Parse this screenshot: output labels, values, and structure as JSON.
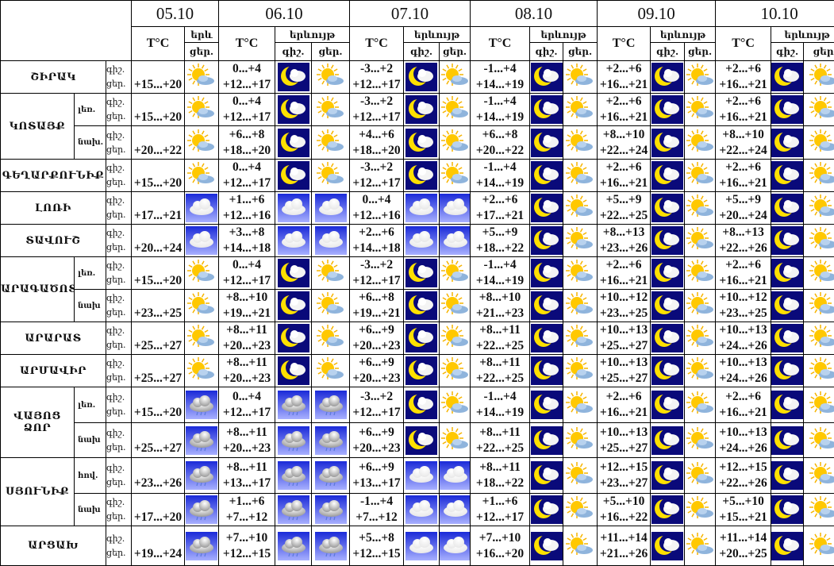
{
  "header": {
    "dates": [
      "05.10",
      "06.10",
      "07.10",
      "08.10",
      "09.10",
      "10.10"
    ],
    "temp_label": "T°C",
    "phenomenon_label": "երևույթ",
    "phenomenon_label_truncated": "երև",
    "night_label": "գիշ.",
    "day_label": "ցեր.",
    "night_label_short": "գիշ.",
    "day_label_last": "ցեր"
  },
  "row_labels": {
    "night": "գիշ.",
    "day": "ցեր."
  },
  "icon_types": {
    "sun-cloud": "partly-cloudy-day-icon",
    "moon-cloud": "partly-cloudy-night-icon",
    "cloud": "cloudy-icon",
    "rain": "rain-icon"
  },
  "regions": [
    {
      "name": "ՇԻՐԱԿ",
      "subs": [
        {
          "name": "",
          "d05": [
            "+15...+20",
            "sun-cloud"
          ],
          "days": [
            [
              "0...+4",
              "+12...+17",
              "moon-cloud",
              "sun-cloud"
            ],
            [
              "-3...+2",
              "+12...+17",
              "moon-cloud",
              "sun-cloud"
            ],
            [
              "-1...+4",
              "+14...+19",
              "moon-cloud",
              "sun-cloud"
            ],
            [
              "+2...+6",
              "+16...+21",
              "moon-cloud",
              "sun-cloud"
            ],
            [
              "+2...+6",
              "+16...+21",
              "moon-cloud",
              "sun-cloud"
            ]
          ]
        }
      ]
    },
    {
      "name": "ԿՈՏԱՅՔ",
      "subs": [
        {
          "name": "լեռ.",
          "d05": [
            "+15...+20",
            "sun-cloud"
          ],
          "days": [
            [
              "0...+4",
              "+12...+17",
              "moon-cloud",
              "sun-cloud"
            ],
            [
              "-3...+2",
              "+12...+17",
              "moon-cloud",
              "sun-cloud"
            ],
            [
              "-1...+4",
              "+14...+19",
              "moon-cloud",
              "sun-cloud"
            ],
            [
              "+2...+6",
              "+16...+21",
              "moon-cloud",
              "sun-cloud"
            ],
            [
              "+2...+6",
              "+16...+21",
              "moon-cloud",
              "sun-cloud"
            ]
          ]
        },
        {
          "name": "նախ.",
          "d05": [
            "+20...+22",
            "sun-cloud"
          ],
          "days": [
            [
              "+6...+8",
              "+18...+20",
              "moon-cloud",
              "sun-cloud"
            ],
            [
              "+4...+6",
              "+18...+20",
              "moon-cloud",
              "sun-cloud"
            ],
            [
              "+6...+8",
              "+20...+22",
              "moon-cloud",
              "sun-cloud"
            ],
            [
              "+8...+10",
              "+22...+24",
              "moon-cloud",
              "sun-cloud"
            ],
            [
              "+8...+10",
              "+22...+24",
              "moon-cloud",
              "sun-cloud"
            ]
          ]
        }
      ]
    },
    {
      "name": "ԳԵՂԱՐՔՈՒՆԻՔ",
      "subs": [
        {
          "name": "",
          "d05": [
            "+15...+20",
            "sun-cloud"
          ],
          "days": [
            [
              "0...+4",
              "+12...+17",
              "moon-cloud",
              "sun-cloud"
            ],
            [
              "-3...+2",
              "+12...+17",
              "moon-cloud",
              "sun-cloud"
            ],
            [
              "-1...+4",
              "+14...+19",
              "moon-cloud",
              "sun-cloud"
            ],
            [
              "+2...+6",
              "+16...+21",
              "moon-cloud",
              "sun-cloud"
            ],
            [
              "+2...+6",
              "+16...+21",
              "moon-cloud",
              "sun-cloud"
            ]
          ]
        }
      ]
    },
    {
      "name": "ԼՈՌԻ",
      "subs": [
        {
          "name": "",
          "d05": [
            "+17...+21",
            "cloud"
          ],
          "days": [
            [
              "+1...+6",
              "+12...+16",
              "cloud",
              "cloud"
            ],
            [
              "0...+4",
              "+12...+16",
              "cloud",
              "cloud"
            ],
            [
              "+2...+6",
              "+17...+21",
              "moon-cloud",
              "sun-cloud"
            ],
            [
              "+5...+9",
              "+22...+25",
              "moon-cloud",
              "sun-cloud"
            ],
            [
              "+5...+9",
              "+20...+24",
              "moon-cloud",
              "sun-cloud"
            ]
          ]
        }
      ]
    },
    {
      "name": "ՏԱՎՈՒՇ",
      "subs": [
        {
          "name": "",
          "d05": [
            "+20...+24",
            "cloud"
          ],
          "days": [
            [
              "+3...+8",
              "+14...+18",
              "cloud",
              "cloud"
            ],
            [
              "+2...+6",
              "+14...+18",
              "cloud",
              "cloud"
            ],
            [
              "+5...+9",
              "+18...+22",
              "moon-cloud",
              "sun-cloud"
            ],
            [
              "+8...+13",
              "+23...+26",
              "moon-cloud",
              "sun-cloud"
            ],
            [
              "+8...+13",
              "+22...+26",
              "moon-cloud",
              "sun-cloud"
            ]
          ]
        }
      ]
    },
    {
      "name": "ԱՐԱԳԱԾՈՏՆ",
      "subs": [
        {
          "name": "լեռ.",
          "d05": [
            "+15...+20",
            "sun-cloud"
          ],
          "days": [
            [
              "0...+4",
              "+12...+17",
              "moon-cloud",
              "sun-cloud"
            ],
            [
              "-3...+2",
              "+12...+17",
              "moon-cloud",
              "sun-cloud"
            ],
            [
              "-1...+4",
              "+14...+19",
              "moon-cloud",
              "sun-cloud"
            ],
            [
              "+2...+6",
              "+16...+21",
              "moon-cloud",
              "sun-cloud"
            ],
            [
              "+2...+6",
              "+16...+21",
              "moon-cloud",
              "sun-cloud"
            ]
          ]
        },
        {
          "name": "նախ",
          "d05": [
            "+23...+25",
            "sun-cloud"
          ],
          "days": [
            [
              "+8...+10",
              "+19...+21",
              "moon-cloud",
              "sun-cloud"
            ],
            [
              "+6...+8",
              "+19...+21",
              "moon-cloud",
              "sun-cloud"
            ],
            [
              "+8...+10",
              "+21...+23",
              "moon-cloud",
              "sun-cloud"
            ],
            [
              "+10...+12",
              "+23...+25",
              "moon-cloud",
              "sun-cloud"
            ],
            [
              "+10...+12",
              "+23...+25",
              "moon-cloud",
              "sun-cloud"
            ]
          ]
        }
      ]
    },
    {
      "name": "ԱՐԱՐԱՏ",
      "subs": [
        {
          "name": "",
          "d05": [
            "+25...+27",
            "sun-cloud"
          ],
          "days": [
            [
              "+8...+11",
              "+20...+23",
              "moon-cloud",
              "sun-cloud"
            ],
            [
              "+6...+9",
              "+20...+23",
              "moon-cloud",
              "sun-cloud"
            ],
            [
              "+8...+11",
              "+22...+25",
              "moon-cloud",
              "sun-cloud"
            ],
            [
              "+10...+13",
              "+25...+27",
              "moon-cloud",
              "sun-cloud"
            ],
            [
              "+10...+13",
              "+24...+26",
              "moon-cloud",
              "sun-cloud"
            ]
          ]
        }
      ]
    },
    {
      "name": "ԱՐՄԱՎԻՐ",
      "subs": [
        {
          "name": "",
          "d05": [
            "+25...+27",
            "sun-cloud"
          ],
          "days": [
            [
              "+8...+11",
              "+20...+23",
              "moon-cloud",
              "sun-cloud"
            ],
            [
              "+6...+9",
              "+20...+23",
              "moon-cloud",
              "sun-cloud"
            ],
            [
              "+8...+11",
              "+22...+25",
              "moon-cloud",
              "sun-cloud"
            ],
            [
              "+10...+13",
              "+25...+27",
              "moon-cloud",
              "sun-cloud"
            ],
            [
              "+10...+13",
              "+24...+26",
              "moon-cloud",
              "sun-cloud"
            ]
          ]
        }
      ]
    },
    {
      "name": "ՎԱՅՈՑ ՁՈՐ",
      "subs": [
        {
          "name": "լեռ.",
          "d05": [
            "+15...+20",
            "rain"
          ],
          "days": [
            [
              "0...+4",
              "+12...+17",
              "rain",
              "rain"
            ],
            [
              "-3...+2",
              "+12...+17",
              "moon-cloud",
              "sun-cloud"
            ],
            [
              "-1...+4",
              "+14...+19",
              "moon-cloud",
              "sun-cloud"
            ],
            [
              "+2...+6",
              "+16...+21",
              "moon-cloud",
              "sun-cloud"
            ],
            [
              "+2...+6",
              "+16...+21",
              "moon-cloud",
              "sun-cloud"
            ]
          ]
        },
        {
          "name": "նախ",
          "d05": [
            "+25...+27",
            "rain"
          ],
          "days": [
            [
              "+8...+11",
              "+20...+23",
              "rain",
              "rain"
            ],
            [
              "+6...+9",
              "+20...+23",
              "moon-cloud",
              "sun-cloud"
            ],
            [
              "+8...+11",
              "+22...+25",
              "moon-cloud",
              "sun-cloud"
            ],
            [
              "+10...+13",
              "+25...+27",
              "moon-cloud",
              "sun-cloud"
            ],
            [
              "+10...+13",
              "+24...+26",
              "moon-cloud",
              "sun-cloud"
            ]
          ]
        }
      ]
    },
    {
      "name": "ՍՅՈՒՆԻՔ",
      "subs": [
        {
          "name": "հով.",
          "d05": [
            "+23...+26",
            "rain"
          ],
          "days": [
            [
              "+8...+11",
              "+13...+17",
              "rain",
              "rain"
            ],
            [
              "+6...+9",
              "+13...+17",
              "cloud",
              "cloud"
            ],
            [
              "+8...+11",
              "+18...+22",
              "moon-cloud",
              "sun-cloud"
            ],
            [
              "+12...+15",
              "+23...+27",
              "moon-cloud",
              "sun-cloud"
            ],
            [
              "+12...+15",
              "+22...+26",
              "moon-cloud",
              "sun-cloud"
            ]
          ]
        },
        {
          "name": "նախ",
          "d05": [
            "+17...+20",
            "rain"
          ],
          "days": [
            [
              "+1...+6",
              "+7...+12",
              "rain",
              "rain"
            ],
            [
              "-1...+4",
              "+7...+12",
              "cloud",
              "cloud"
            ],
            [
              "+1...+6",
              "+12...+17",
              "moon-cloud",
              "sun-cloud"
            ],
            [
              "+5...+10",
              "+16...+22",
              "moon-cloud",
              "sun-cloud"
            ],
            [
              "+5...+10",
              "+15...+21",
              "moon-cloud",
              "sun-cloud"
            ]
          ]
        }
      ]
    },
    {
      "name": "ԱՐՑԱԽ",
      "subs": [
        {
          "name": "",
          "d05": [
            "+19...+24",
            "rain"
          ],
          "days": [
            [
              "+7...+10",
              "+12...+15",
              "rain",
              "rain"
            ],
            [
              "+5...+8",
              "+12...+15",
              "cloud",
              "cloud"
            ],
            [
              "+7...+10",
              "+16...+20",
              "moon-cloud",
              "sun-cloud"
            ],
            [
              "+11...+14",
              "+21...+26",
              "moon-cloud",
              "sun-cloud"
            ],
            [
              "+11...+14",
              "+20...+25",
              "moon-cloud",
              "sun-cloud"
            ]
          ]
        }
      ]
    }
  ]
}
